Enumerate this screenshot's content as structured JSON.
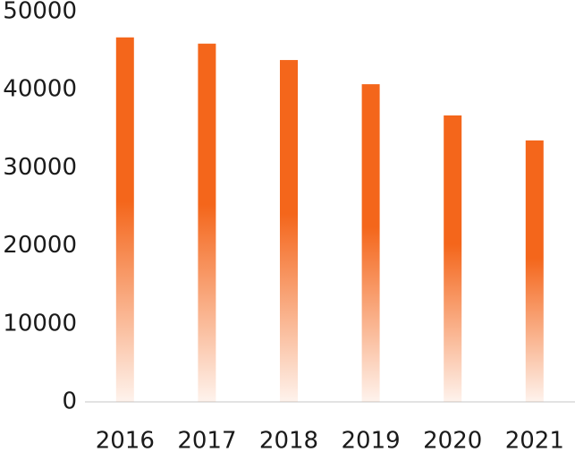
{
  "chart_data": {
    "type": "bar",
    "categories": [
      "2016",
      "2017",
      "2018",
      "2019",
      "2020",
      "2021"
    ],
    "values": [
      46700,
      45900,
      43800,
      40700,
      36700,
      33500
    ],
    "color": "#f4661b",
    "ylim": [
      0,
      50000
    ],
    "yticks": [
      0,
      10000,
      20000,
      30000,
      40000,
      50000
    ],
    "grid": false
  }
}
